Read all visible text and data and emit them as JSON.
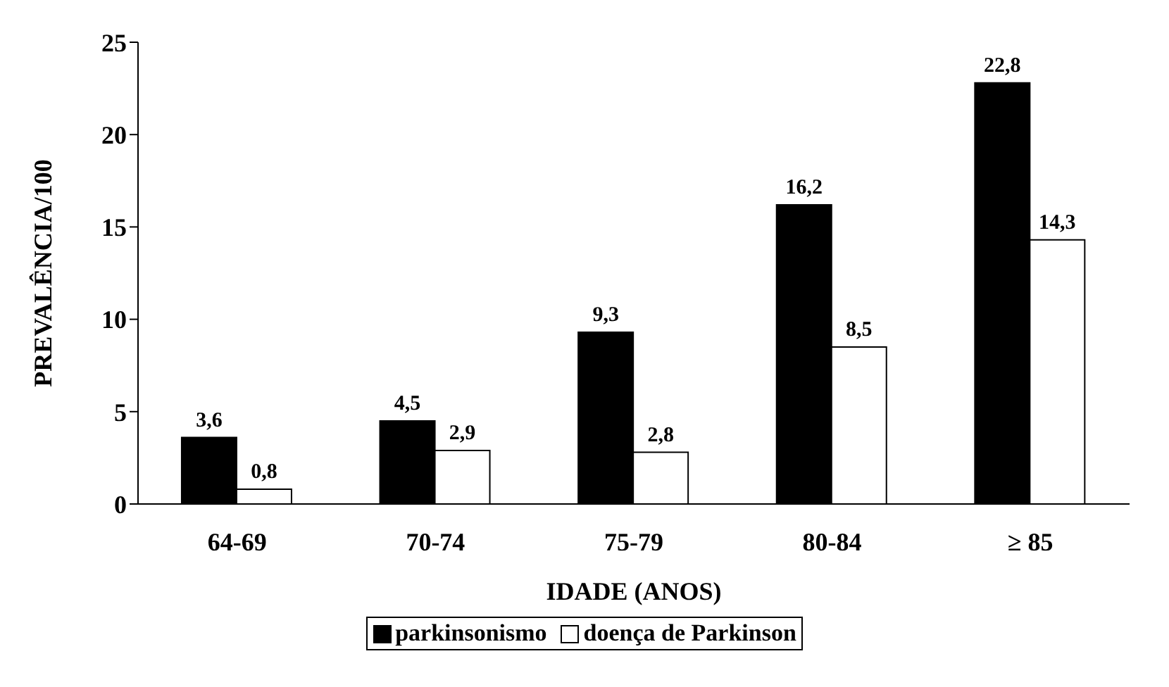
{
  "chart_data": {
    "type": "bar",
    "xlabel": "IDADE (ANOS)",
    "ylabel": "PREVALÊNCIA/100",
    "categories": [
      "64-69",
      "70-74",
      "75-79",
      "80-84",
      "≥ 85"
    ],
    "series": [
      {
        "name": "parkinsonismo",
        "color": "#000000",
        "values": [
          3.6,
          4.5,
          9.3,
          16.2,
          22.8
        ],
        "value_labels": [
          "3,6",
          "4,5",
          "9,3",
          "16,2",
          "22,8"
        ]
      },
      {
        "name": "doença de Parkinson",
        "color": "#ffffff",
        "values": [
          0.8,
          2.9,
          2.8,
          8.5,
          14.3
        ],
        "value_labels": [
          "0,8",
          "2,9",
          "2,8",
          "8,5",
          "14,3"
        ]
      }
    ],
    "ylim": [
      0,
      25
    ],
    "yticks": [
      0,
      5,
      10,
      15,
      20,
      25
    ],
    "grid": false,
    "legend": "bottom"
  }
}
